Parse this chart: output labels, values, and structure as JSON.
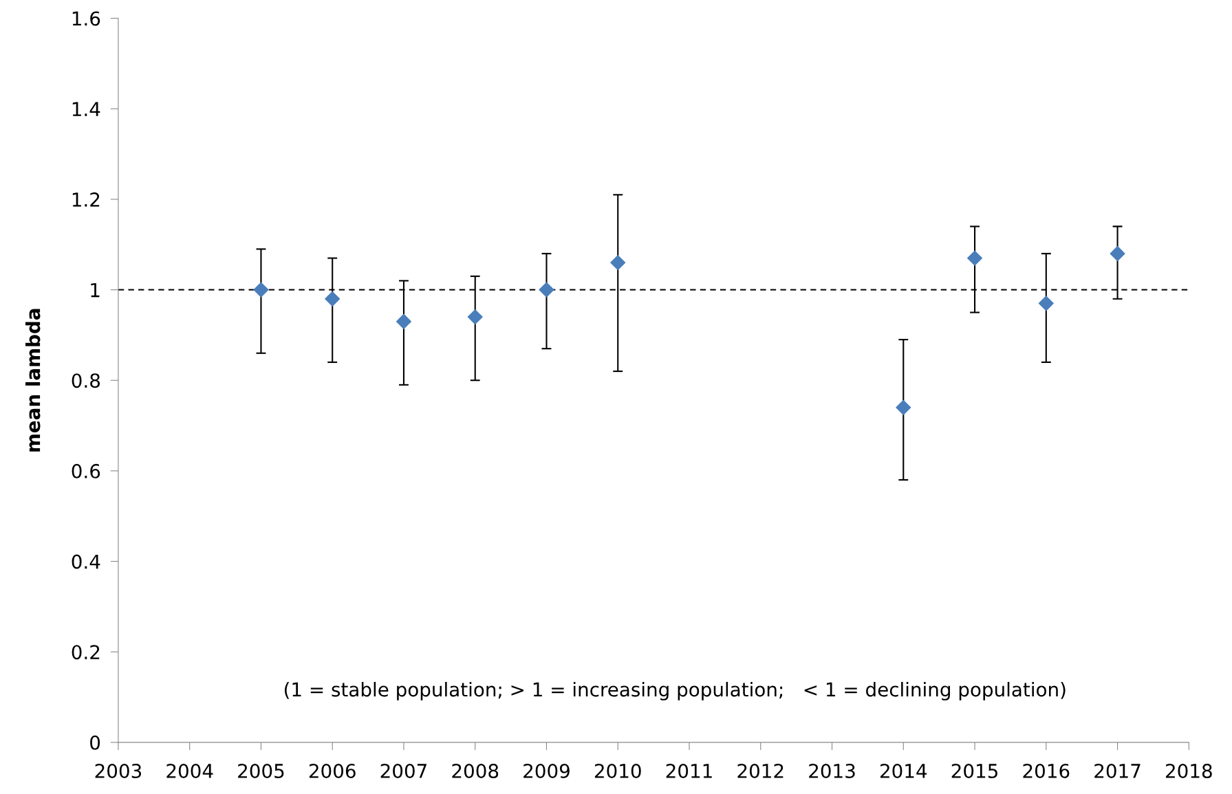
{
  "chart_data": {
    "type": "scatter",
    "ylabel": "mean lambda",
    "x": [
      2005,
      2006,
      2007,
      2008,
      2009,
      2010,
      2014,
      2015,
      2016,
      2017
    ],
    "series": [
      {
        "color": "#4a7ebb",
        "values": [
          1.0,
          0.98,
          0.93,
          0.94,
          1.0,
          1.06,
          0.74,
          1.07,
          0.97,
          1.08
        ],
        "errors": [
          [
            0.86,
            1.09
          ],
          [
            0.84,
            1.07
          ],
          [
            0.79,
            1.02
          ],
          [
            0.8,
            1.03
          ],
          [
            0.87,
            1.08
          ],
          [
            0.82,
            1.21
          ],
          [
            0.58,
            0.89
          ],
          [
            0.95,
            1.14
          ],
          [
            0.84,
            1.08
          ],
          [
            0.98,
            1.14
          ]
        ]
      }
    ],
    "xlim": [
      2003,
      2018
    ],
    "xticks": [
      2003,
      2004,
      2005,
      2006,
      2007,
      2008,
      2009,
      2010,
      2011,
      2012,
      2013,
      2014,
      2015,
      2016,
      2017,
      2018
    ],
    "ylim": [
      0,
      1.6
    ],
    "yticks": [
      0,
      0.2,
      0.4,
      0.6,
      0.8,
      1,
      1.2,
      1.4,
      1.6
    ],
    "ref_lines": [
      {
        "axis": "y",
        "value": 1,
        "color": "#000000",
        "line_style": "dashed"
      }
    ],
    "annotations": [
      "(1 = stable population; > 1 = increasing population;   < 1 = declining population)"
    ],
    "marker": "diamond",
    "grid": false,
    "legend": false
  }
}
